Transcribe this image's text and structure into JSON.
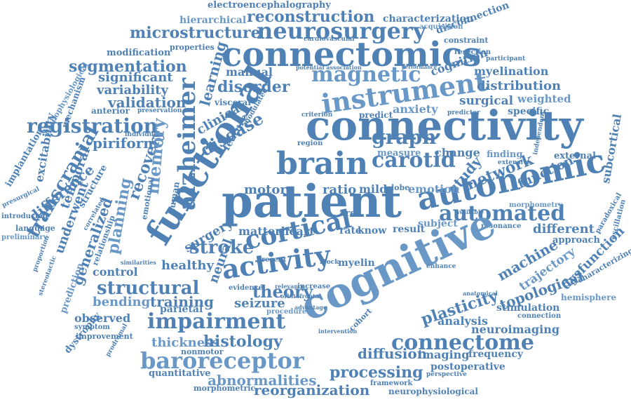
{
  "colors": {
    "word": "#4f81b4",
    "word_light": "#6a98c6",
    "background": "#ffffff"
  },
  "words": [
    "electroencephalography",
    "reconstruction",
    "characterization",
    "hierarchical",
    "neurosurgery",
    "microstructure",
    "connectomics",
    "cardiovascular",
    "constraint",
    "disconnection",
    "acquisition",
    "modification",
    "properties",
    "resection",
    "participant",
    "segmentation",
    "significant",
    "magnetic",
    "myelination",
    "cognition",
    "potential association",
    "performance",
    "manual",
    "disorder",
    "instrument",
    "distribution",
    "functional",
    "variability",
    "learning",
    "alzheimer",
    "surgical",
    "weighted",
    "validation",
    "clinical",
    "visceral",
    "modulated",
    "disease",
    "connectivity",
    "anxiety",
    "specific",
    "registration",
    "predict",
    "criterion",
    "predictor",
    "graph",
    "pathophysiological",
    "mechanism",
    "anterior",
    "preservation",
    "feature",
    "brain",
    "carotid",
    "measure",
    "piriform",
    "transcranial",
    "individual",
    "excitability",
    "study",
    "network",
    "finding",
    "independent",
    "extensive",
    "implantation",
    "temporal",
    "difference",
    "recovery",
    "memory",
    "autonomic",
    "function",
    "external",
    "subcortical",
    "change",
    "region",
    "emotion",
    "ratio",
    "mild",
    "motor",
    "lobe",
    "patient",
    "automated",
    "planning",
    "structure",
    "underwent",
    "correlated",
    "presurgical",
    "introducing",
    "language",
    "preliminary",
    "generalized",
    "relationship",
    "emotional",
    "human",
    "surgery",
    "available",
    "morphometry",
    "paradoxical",
    "matterheart",
    "area",
    "rate",
    "know",
    "result",
    "subject",
    "resonance",
    "different",
    "approach",
    "cortical",
    "stroke",
    "machine",
    "trajectory",
    "dysfunction",
    "characterizing",
    "oscillation",
    "control",
    "healthy",
    "activity",
    "cognitive",
    "present",
    "myelin",
    "block",
    "enhance",
    "similarities",
    "proportion",
    "prediction",
    "stereotactic",
    "structural",
    "neural",
    "evidence",
    "relevance",
    "increase",
    "bending",
    "theory",
    "training",
    "seizure",
    "parietal",
    "plasticity",
    "topological",
    "hemisphere",
    "stimulation",
    "anatomical",
    "connection",
    "observed",
    "impairment",
    "advantage",
    "procedure",
    "orbitofrontal",
    "analysis",
    "neuroimaging",
    "symptom",
    "dystrophy",
    "improvement",
    "thickness",
    "histology",
    "nonmotor",
    "cohort",
    "connectome",
    "intervention",
    "prodromal",
    "baroreceptor",
    "diffusion",
    "imaging",
    "frequency",
    "quantitative",
    "processing",
    "postoperative",
    "abnormalities",
    "perspective",
    "morphometric",
    "reorganization",
    "framework",
    "neurophysiological"
  ]
}
